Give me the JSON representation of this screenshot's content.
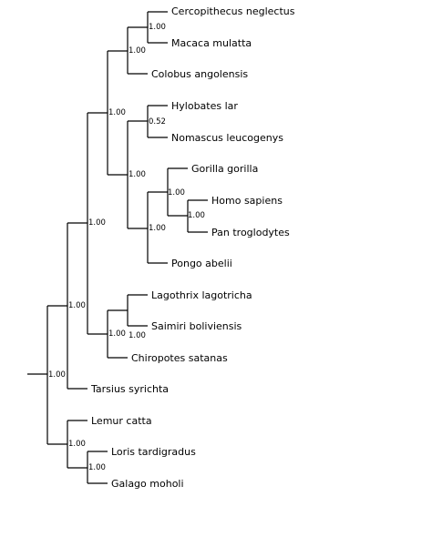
{
  "tree": {
    "taxa": [
      "Cercopithecus neglectus",
      "Macaca mulatta",
      "Colobus angolensis",
      "Hylobates lar",
      "Nomascus leucogenys",
      "Gorilla gorilla",
      "Homo sapiens",
      "Pan troglodytes",
      "Pongo abelii",
      "Lagothrix lagotricha",
      "Saimiri boliviensis",
      "Chiropotes satanas",
      "Tarsius syrichta",
      "Lemur catta",
      "Loris tardigradus",
      "Galago moholi"
    ],
    "newick": "((((((Cercopithecus neglectus,Macaca mulatta)1.00,Colobus angolensis)1.00,((Hylobates lar,Nomascus leucogenys)0.52,((Gorilla gorilla,(Homo sapiens,Pan troglodytes)1.00)1.00,Pongo abelii)1.00)1.00)1.00,((Lagothrix lagotricha,Saimiri boliviensis)1.00,Chiropotes satanas)1.00)1.00,Tarsius syrichta)1.00,(Lemur catta,(Loris tardigradus,Galago moholi)1.00)1.00)1.00;",
    "supports": {
      "cerc_mac": "1.00",
      "old_world_monkeys": "1.00",
      "gibbons": "0.52",
      "homo_pan": "1.00",
      "african_apes": "1.00",
      "great_apes": "1.00",
      "apes": "1.00",
      "catarrhini": "1.00",
      "lago_saimiri": "1.00",
      "platyrrhini": "1.00",
      "anthropoidea": "1.00",
      "haplorhini": "1.00",
      "loris_galago": "1.00",
      "strepsirrhini": "1.00",
      "root": "1.00"
    }
  }
}
